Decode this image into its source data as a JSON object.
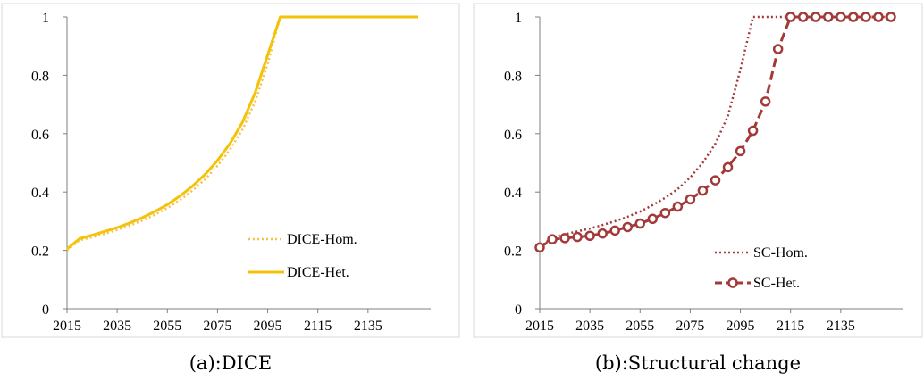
{
  "chart_data": [
    {
      "type": "line",
      "caption": "(a):DICE",
      "x": [
        2015,
        2020,
        2025,
        2030,
        2035,
        2040,
        2045,
        2050,
        2055,
        2060,
        2065,
        2070,
        2075,
        2080,
        2085,
        2090,
        2095,
        2100,
        2105,
        2110,
        2115,
        2120,
        2125,
        2130,
        2135,
        2140,
        2145,
        2150,
        2155
      ],
      "series": [
        {
          "name": "DICE-Hom.",
          "style": "dotted",
          "color": "#f5c243",
          "values": [
            0.2,
            0.235,
            0.245,
            0.257,
            0.27,
            0.285,
            0.302,
            0.322,
            0.345,
            0.372,
            0.405,
            0.443,
            0.49,
            0.545,
            0.615,
            0.71,
            0.84,
            1,
            1,
            1,
            1,
            1,
            1,
            1,
            1,
            1,
            1,
            1,
            1
          ]
        },
        {
          "name": "DICE-Het.",
          "style": "solid",
          "color": "#f5c20a",
          "values": [
            0.205,
            0.24,
            0.252,
            0.265,
            0.278,
            0.294,
            0.312,
            0.333,
            0.357,
            0.386,
            0.42,
            0.46,
            0.508,
            0.566,
            0.64,
            0.74,
            0.87,
            1,
            1,
            1,
            1,
            1,
            1,
            1,
            1,
            1,
            1,
            1,
            1
          ]
        }
      ],
      "xticks": [
        "2015",
        "2035",
        "2055",
        "2075",
        "2095",
        "2115",
        "2135"
      ],
      "yticks": [
        "0",
        "0.2",
        "0.4",
        "0.6",
        "0.8",
        "1"
      ],
      "ylim": [
        0,
        1
      ],
      "xlim": [
        2015,
        2160
      ],
      "legend": "bottom-right"
    },
    {
      "type": "line",
      "caption": "(b):Structural change",
      "x": [
        2015,
        2020,
        2025,
        2030,
        2035,
        2040,
        2045,
        2050,
        2055,
        2060,
        2065,
        2070,
        2075,
        2080,
        2085,
        2090,
        2095,
        2100,
        2105,
        2110,
        2115,
        2120,
        2125,
        2130,
        2135,
        2140,
        2145,
        2150,
        2155
      ],
      "series": [
        {
          "name": "SC-Hom.",
          "style": "dotted",
          "color": "#a33a3a",
          "values": [
            0.21,
            0.245,
            0.255,
            0.265,
            0.275,
            0.287,
            0.3,
            0.315,
            0.333,
            0.355,
            0.38,
            0.41,
            0.45,
            0.5,
            0.565,
            0.66,
            0.82,
            1,
            1,
            1,
            1,
            1,
            1,
            1,
            1,
            1,
            1,
            1,
            1
          ]
        },
        {
          "name": "SC-Het.",
          "style": "dashed-marker",
          "color": "#a33a3a",
          "values": [
            0.21,
            0.238,
            0.242,
            0.246,
            0.25,
            0.258,
            0.268,
            0.28,
            0.292,
            0.308,
            0.328,
            0.35,
            0.375,
            0.405,
            0.44,
            0.485,
            0.54,
            0.61,
            0.71,
            0.89,
            1,
            1,
            1,
            1,
            1,
            1,
            1,
            1,
            1
          ]
        }
      ],
      "xticks": [
        "2015",
        "2035",
        "2055",
        "2075",
        "2095",
        "2115",
        "2135"
      ],
      "yticks": [
        "0",
        "0.2",
        "0.4",
        "0.6",
        "0.8",
        "1"
      ],
      "ylim": [
        0,
        1
      ],
      "xlim": [
        2015,
        2160
      ],
      "legend": "bottom-right"
    }
  ]
}
